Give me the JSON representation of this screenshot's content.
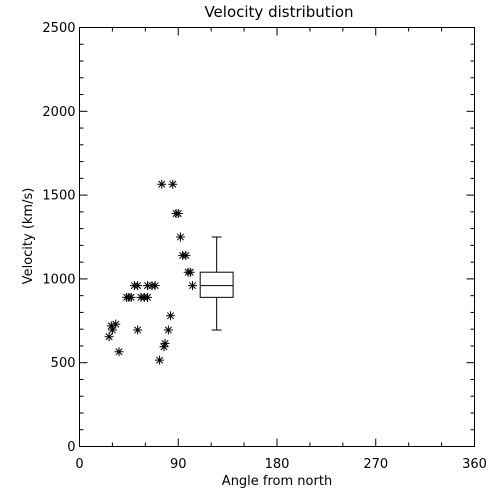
{
  "chart_data": {
    "type": "scatter",
    "title": "Velocity distribution",
    "xlabel": "Angle from north",
    "ylabel": "Velocity (km/s)",
    "xlim": [
      0,
      360
    ],
    "ylim": [
      0,
      2500
    ],
    "xticks": [
      0,
      90,
      180,
      270,
      360
    ],
    "yticks": [
      0,
      500,
      1000,
      1500,
      2000,
      2500
    ],
    "grid": false,
    "marker": "asterisk",
    "points": [
      {
        "x": 27,
        "y": 655
      },
      {
        "x": 29,
        "y": 720
      },
      {
        "x": 30,
        "y": 695
      },
      {
        "x": 33,
        "y": 730
      },
      {
        "x": 36,
        "y": 565
      },
      {
        "x": 43,
        "y": 890
      },
      {
        "x": 45,
        "y": 890
      },
      {
        "x": 47,
        "y": 890
      },
      {
        "x": 50,
        "y": 960
      },
      {
        "x": 53,
        "y": 960
      },
      {
        "x": 53,
        "y": 695
      },
      {
        "x": 56,
        "y": 890
      },
      {
        "x": 59,
        "y": 890
      },
      {
        "x": 62,
        "y": 890
      },
      {
        "x": 62,
        "y": 960
      },
      {
        "x": 66,
        "y": 960
      },
      {
        "x": 69,
        "y": 960
      },
      {
        "x": 73,
        "y": 515
      },
      {
        "x": 75,
        "y": 1565
      },
      {
        "x": 77,
        "y": 595
      },
      {
        "x": 78,
        "y": 615
      },
      {
        "x": 81,
        "y": 695
      },
      {
        "x": 83,
        "y": 780
      },
      {
        "x": 85,
        "y": 1565
      },
      {
        "x": 88,
        "y": 1390
      },
      {
        "x": 90,
        "y": 1390
      },
      {
        "x": 92,
        "y": 1250
      },
      {
        "x": 94,
        "y": 1140
      },
      {
        "x": 97,
        "y": 1140
      },
      {
        "x": 99,
        "y": 1040
      },
      {
        "x": 101,
        "y": 1040
      },
      {
        "x": 103,
        "y": 960
      }
    ],
    "boxplot": {
      "x_left": 110,
      "x_right": 140,
      "whisker_low": 695,
      "q1": 890,
      "median": 960,
      "q3": 1040,
      "whisker_high": 1250
    }
  }
}
